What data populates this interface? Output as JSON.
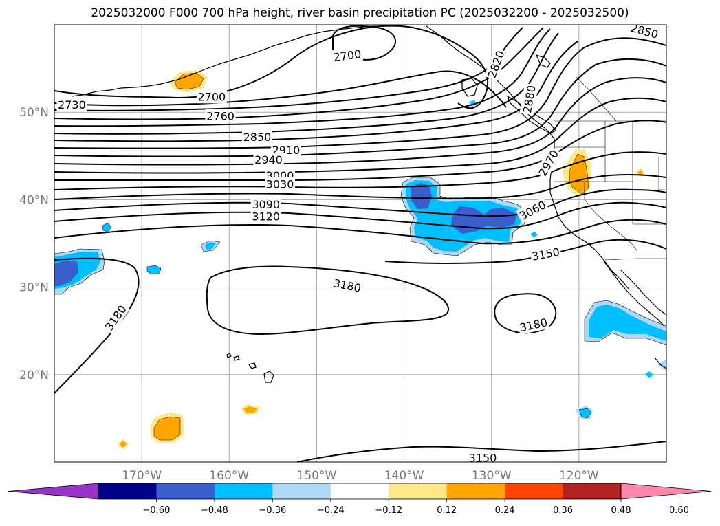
{
  "title": "2025032000 F000 700 hPa height, river basin precipitation PC (2025032200 - 2025032500)",
  "map": {
    "projection": "lat-lon",
    "lon_range": [
      -180,
      -110
    ],
    "lat_range": [
      10,
      60
    ],
    "grid": true,
    "grid_color": "#aaaaaa",
    "lat_ticks": [
      {
        "value": 20,
        "label": "20°N"
      },
      {
        "value": 30,
        "label": "30°N"
      },
      {
        "value": 40,
        "label": "40°N"
      },
      {
        "value": 50,
        "label": "50°N"
      }
    ],
    "lon_ticks": [
      {
        "value": -170,
        "label": "170°W"
      },
      {
        "value": -160,
        "label": "160°W"
      },
      {
        "value": -150,
        "label": "150°W"
      },
      {
        "value": -140,
        "label": "140°W"
      },
      {
        "value": -130,
        "label": "130°W"
      },
      {
        "value": -120,
        "label": "120°W"
      }
    ]
  },
  "contours": {
    "variable": "700 hPa height",
    "color": "#000000",
    "labels": [
      {
        "text": "2700",
        "lon": -146.5,
        "lat": 56.5,
        "rot": -8
      },
      {
        "text": "2700",
        "lon": -162,
        "lat": 51.8,
        "rot": 0
      },
      {
        "text": "2730",
        "lon": -178,
        "lat": 50.9,
        "rot": 0
      },
      {
        "text": "2760",
        "lon": -161,
        "lat": 49.6,
        "rot": 0
      },
      {
        "text": "2850",
        "lon": -156.8,
        "lat": 47.2,
        "rot": 0
      },
      {
        "text": "2910",
        "lon": -153.5,
        "lat": 45.7,
        "rot": 0
      },
      {
        "text": "2940",
        "lon": -155.5,
        "lat": 44.6,
        "rot": 0
      },
      {
        "text": "3000",
        "lon": -154.2,
        "lat": 42.8,
        "rot": 0
      },
      {
        "text": "3030",
        "lon": -154.2,
        "lat": 41.8,
        "rot": 0
      },
      {
        "text": "3090",
        "lon": -155.8,
        "lat": 39.5,
        "rot": 0
      },
      {
        "text": "3120",
        "lon": -155.8,
        "lat": 38.1,
        "rot": 0
      },
      {
        "text": "3060",
        "lon": -125.3,
        "lat": 38.8,
        "rot": -28
      },
      {
        "text": "3150",
        "lon": -123.8,
        "lat": 33.8,
        "rot": -10
      },
      {
        "text": "3180",
        "lon": -146.5,
        "lat": 30.2,
        "rot": 12
      },
      {
        "text": "3180",
        "lon": -173,
        "lat": 26.5,
        "rot": -55
      },
      {
        "text": "3180",
        "lon": -125.2,
        "lat": 25.7,
        "rot": -12
      },
      {
        "text": "3150",
        "lon": -131,
        "lat": 10.5,
        "rot": 0
      },
      {
        "text": "2970",
        "lon": -123.5,
        "lat": 44.2,
        "rot": -60
      },
      {
        "text": "2880",
        "lon": -125.7,
        "lat": 51.5,
        "rot": -80
      },
      {
        "text": "2850",
        "lon": -112.5,
        "lat": 59.3,
        "rot": 15
      },
      {
        "text": "2820",
        "lon": -129.5,
        "lat": 55.5,
        "rot": -70
      }
    ]
  },
  "precipitation_pc": {
    "colors": {
      "lt_-0.60": "#9932cc",
      "-0.60_-0.48": "#00008b",
      "-0.48_-0.36": "#3a5fcd",
      "-0.36_-0.24": "#00bfff",
      "-0.24_-0.12": "#add8f7",
      "-0.12_0.12": "#ffffff",
      "0.12_0.24": "#ffe88a",
      "0.24_0.36": "#ffa500",
      "0.36_0.48": "#ff4500",
      "0.48_0.60": "#b22222",
      "gt_0.60": "#ff88aa"
    }
  },
  "colorbar": {
    "ticks": [
      "−0.60",
      "−0.48",
      "−0.36",
      "−0.24",
      "−0.12",
      "0.12",
      "0.24",
      "0.36",
      "0.48",
      "0.60"
    ],
    "colors": [
      "#9932cc",
      "#00008b",
      "#3a5fcd",
      "#00bfff",
      "#add8f7",
      "#ffffff",
      "#ffe88a",
      "#ffa500",
      "#ff4500",
      "#b22222",
      "#ff88aa"
    ]
  }
}
